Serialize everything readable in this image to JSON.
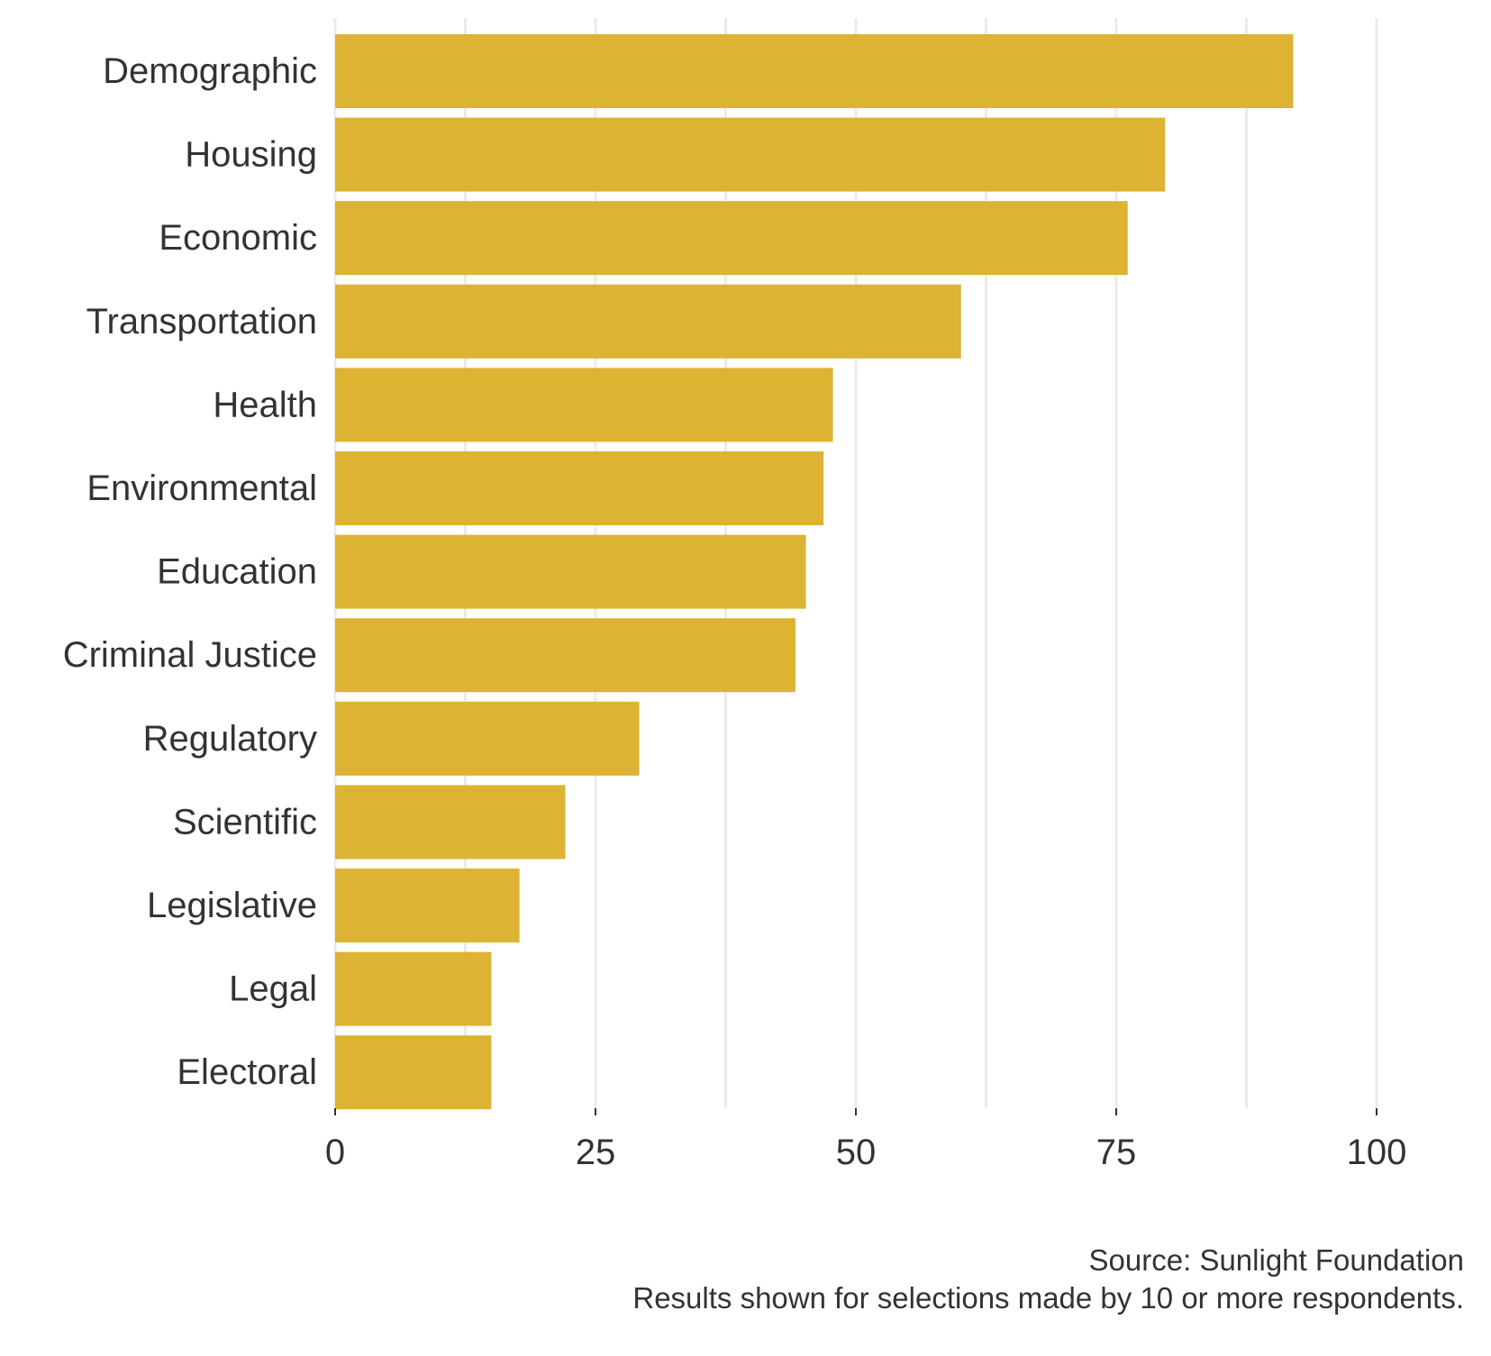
{
  "chart_data": {
    "type": "bar",
    "orientation": "horizontal",
    "categories": [
      "Demographic",
      "Housing",
      "Economic",
      "Transportation",
      "Health",
      "Environmental",
      "Education",
      "Criminal Justice",
      "Regulatory",
      "Scientific",
      "Legislative",
      "Legal",
      "Electoral"
    ],
    "values": [
      92,
      79.7,
      76.1,
      60.1,
      47.8,
      46.9,
      45.2,
      44.2,
      29.2,
      22.1,
      17.7,
      15,
      15
    ],
    "xlim": [
      0,
      100
    ],
    "xticks": [
      0,
      25,
      50,
      75,
      100
    ],
    "xtick_labels": [
      "0",
      "25",
      "50",
      "75",
      "100"
    ],
    "minor_gridlines": [
      12.5,
      37.5,
      62.5,
      87.5
    ],
    "title": "",
    "xlabel": "",
    "ylabel": "",
    "grid": true,
    "bar_color": "#dcb332",
    "caption": {
      "source": "Source: Sunlight Foundation",
      "note": "Results shown for selections made by 10 or more respondents."
    }
  }
}
